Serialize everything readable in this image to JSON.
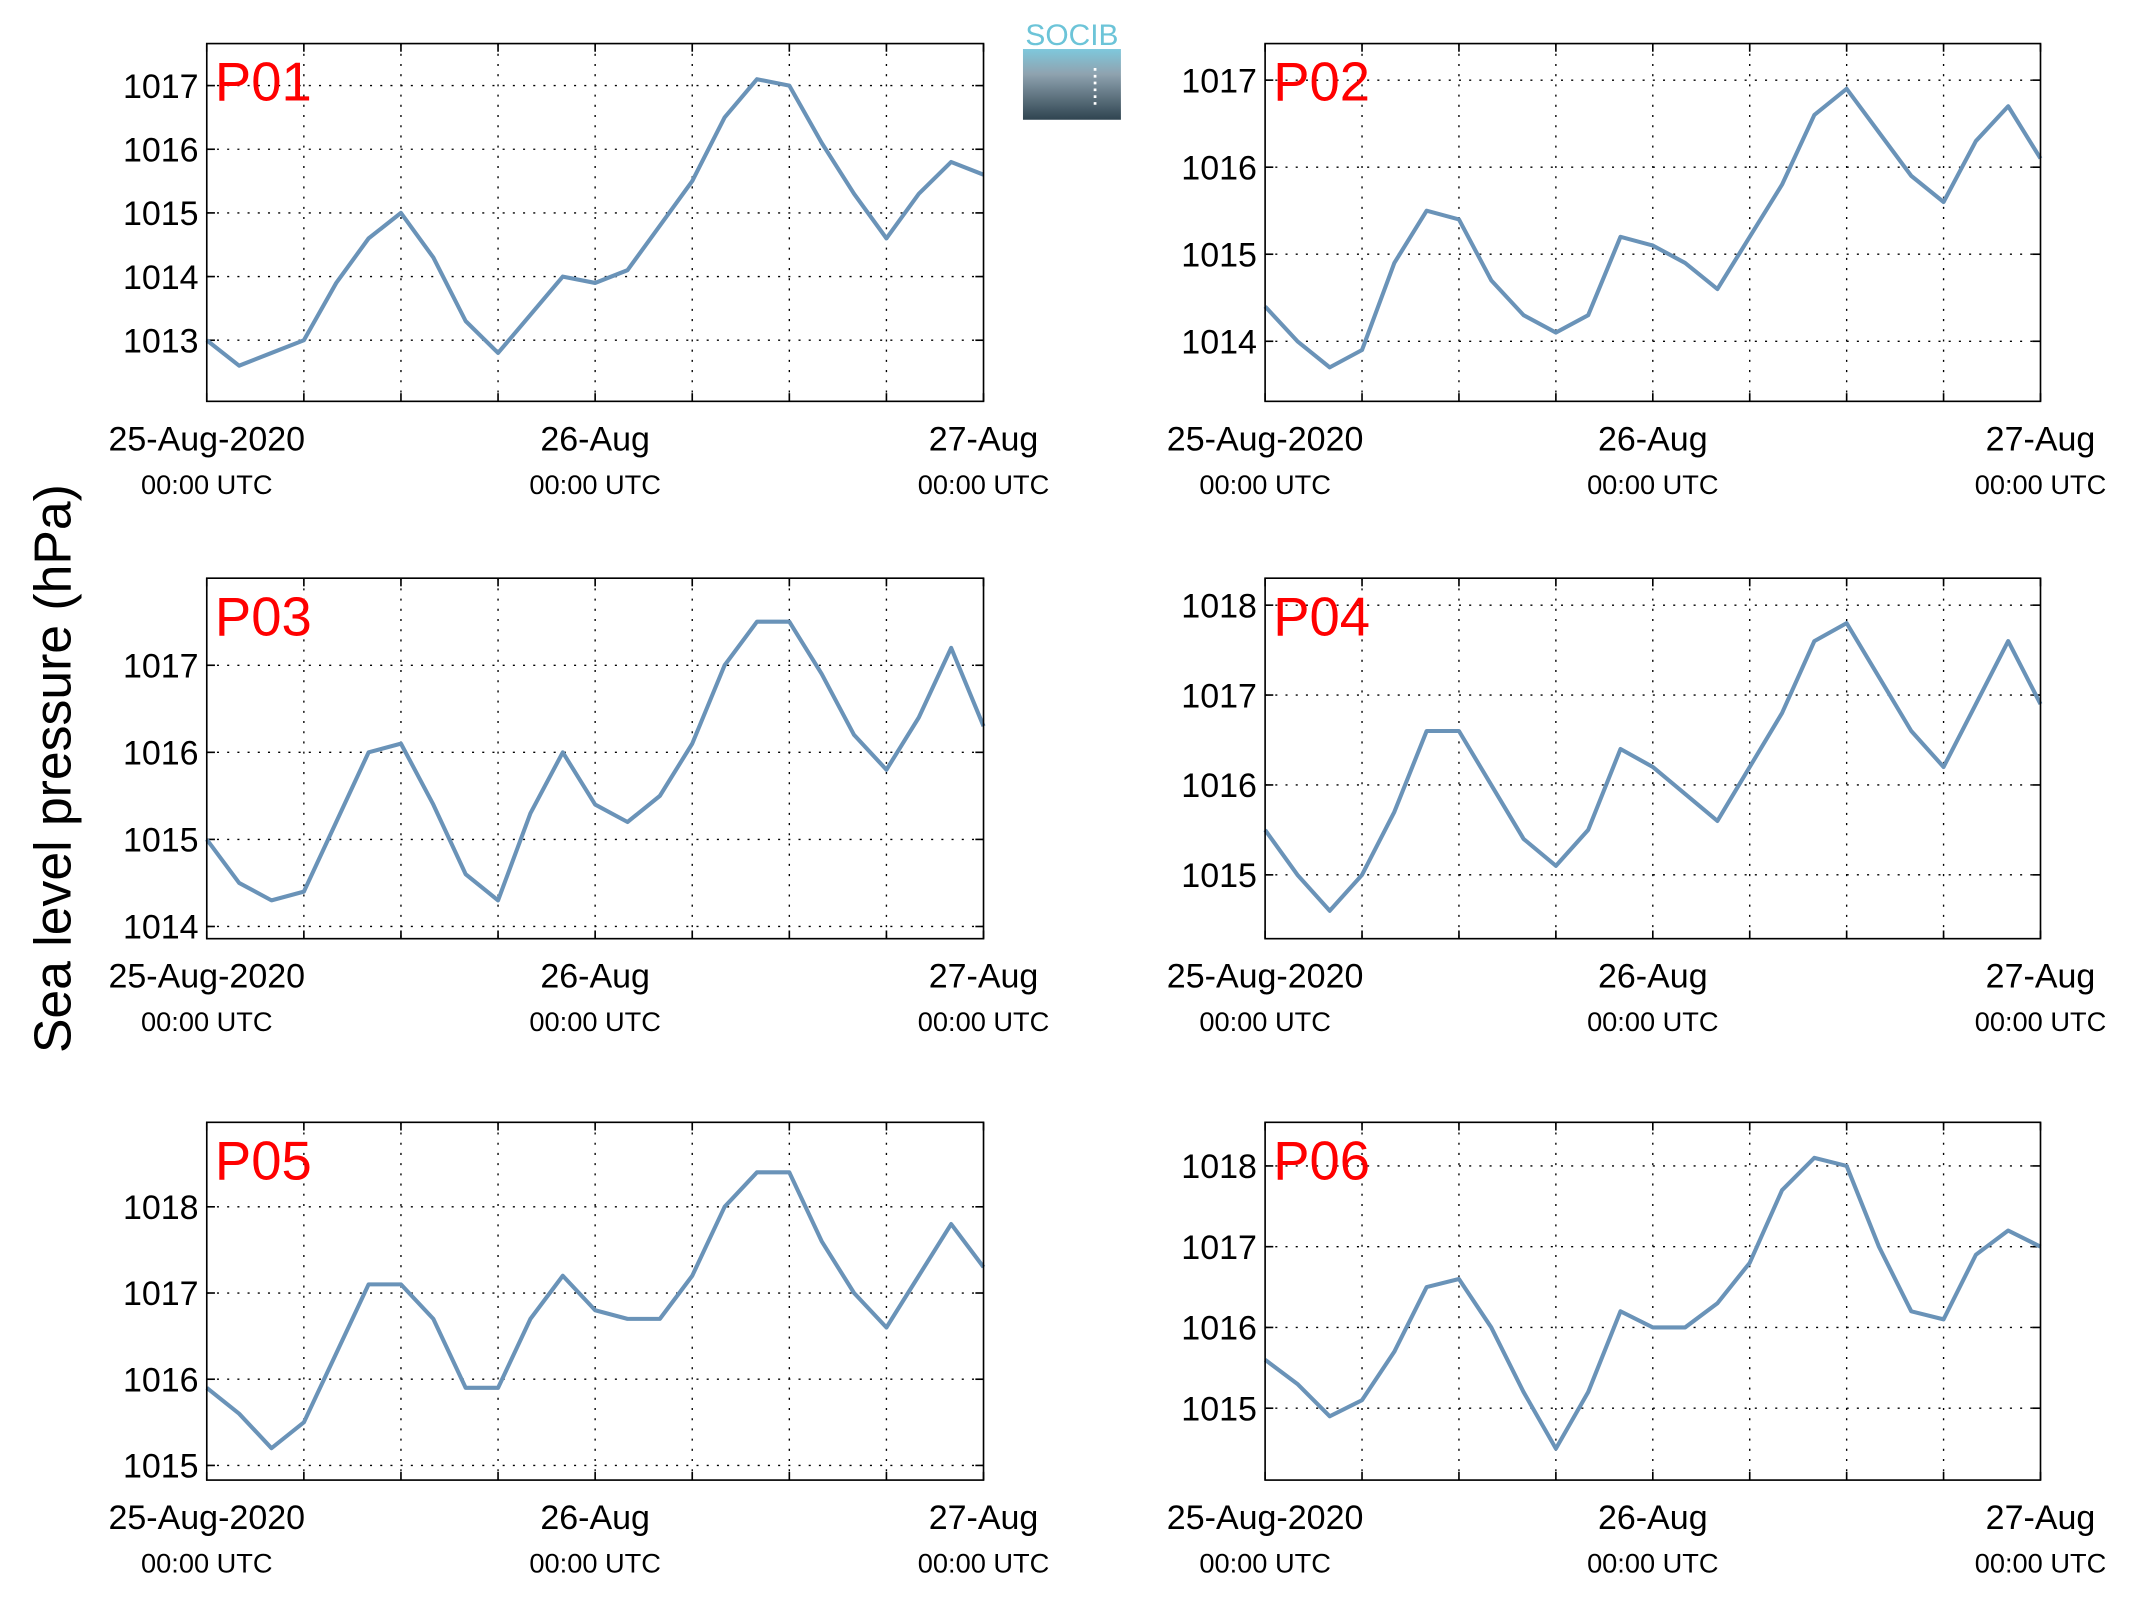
{
  "figure": {
    "ylabel": "Sea level pressure (hPa)",
    "logo": "SOCIB"
  },
  "chart_data": [
    {
      "type": "line",
      "title": "P01",
      "color": "#6a93b8",
      "x": [
        0,
        2,
        4,
        6,
        8,
        10,
        12,
        14,
        16,
        18,
        20,
        22,
        24,
        26,
        28,
        30,
        32,
        34,
        36,
        38,
        40,
        42,
        44,
        46,
        48
      ],
      "values": [
        1013.0,
        1012.6,
        1012.8,
        1013.0,
        1013.9,
        1014.6,
        1015.0,
        1014.3,
        1013.3,
        1012.8,
        1013.4,
        1014.0,
        1013.9,
        1014.1,
        1014.8,
        1015.5,
        1016.5,
        1017.1,
        1017.0,
        1016.1,
        1015.3,
        1014.6,
        1015.3,
        1015.8,
        1015.6
      ],
      "xlim": [
        0,
        48
      ],
      "xticks": [
        {
          "value": 0,
          "label": "25-Aug-2020",
          "sublabel": "00:00 UTC"
        },
        {
          "value": 6,
          "label": null
        },
        {
          "value": 12,
          "label": null
        },
        {
          "value": 18,
          "label": null
        },
        {
          "value": 24,
          "label": "26-Aug",
          "sublabel": "00:00 UTC"
        },
        {
          "value": 30,
          "label": null
        },
        {
          "value": 36,
          "label": null
        },
        {
          "value": 42,
          "label": null
        },
        {
          "value": 48,
          "label": "27-Aug",
          "sublabel": "00:00 UTC"
        }
      ],
      "ylim": [
        1012.04,
        1017.66
      ],
      "yticks": [
        1013,
        1014,
        1015,
        1016,
        1017
      ],
      "grid": true
    },
    {
      "type": "line",
      "title": "P02",
      "color": "#6a93b8",
      "x": [
        0,
        2,
        4,
        6,
        8,
        10,
        12,
        14,
        16,
        18,
        20,
        22,
        24,
        26,
        28,
        30,
        32,
        34,
        36,
        38,
        40,
        42,
        44,
        46,
        48
      ],
      "values": [
        1014.4,
        1014.0,
        1013.7,
        1013.9,
        1014.9,
        1015.5,
        1015.4,
        1014.7,
        1014.3,
        1014.1,
        1014.3,
        1015.2,
        1015.1,
        1014.9,
        1014.6,
        1015.2,
        1015.8,
        1016.6,
        1016.9,
        1016.4,
        1015.9,
        1015.6,
        1016.3,
        1016.7,
        1016.1
      ],
      "xlim": [
        0,
        48
      ],
      "xticks": [
        {
          "value": 0,
          "label": "25-Aug-2020",
          "sublabel": "00:00 UTC"
        },
        {
          "value": 6,
          "label": null
        },
        {
          "value": 12,
          "label": null
        },
        {
          "value": 18,
          "label": null
        },
        {
          "value": 24,
          "label": "26-Aug",
          "sublabel": "00:00 UTC"
        },
        {
          "value": 30,
          "label": null
        },
        {
          "value": 36,
          "label": null
        },
        {
          "value": 42,
          "label": null
        },
        {
          "value": 48,
          "label": "27-Aug",
          "sublabel": "00:00 UTC"
        }
      ],
      "ylim": [
        1013.31,
        1017.42
      ],
      "yticks": [
        1014,
        1015,
        1016,
        1017
      ],
      "grid": true
    },
    {
      "type": "line",
      "title": "P03",
      "color": "#6a93b8",
      "x": [
        0,
        2,
        4,
        6,
        8,
        10,
        12,
        14,
        16,
        18,
        20,
        22,
        24,
        26,
        28,
        30,
        32,
        34,
        36,
        38,
        40,
        42,
        44,
        46,
        48
      ],
      "values": [
        1015.0,
        1014.5,
        1014.3,
        1014.4,
        1015.2,
        1016.0,
        1016.1,
        1015.4,
        1014.6,
        1014.3,
        1015.3,
        1016.0,
        1015.4,
        1015.2,
        1015.5,
        1016.1,
        1017.0,
        1017.5,
        1017.5,
        1016.9,
        1016.2,
        1015.8,
        1016.4,
        1017.2,
        1016.3
      ],
      "xlim": [
        0,
        48
      ],
      "xticks": [
        {
          "value": 0,
          "label": "25-Aug-2020",
          "sublabel": "00:00 UTC"
        },
        {
          "value": 6,
          "label": null
        },
        {
          "value": 12,
          "label": null
        },
        {
          "value": 18,
          "label": null
        },
        {
          "value": 24,
          "label": "26-Aug",
          "sublabel": "00:00 UTC"
        },
        {
          "value": 30,
          "label": null
        },
        {
          "value": 36,
          "label": null
        },
        {
          "value": 42,
          "label": null
        },
        {
          "value": 48,
          "label": "27-Aug",
          "sublabel": "00:00 UTC"
        }
      ],
      "ylim": [
        1013.86,
        1018.0
      ],
      "yticks": [
        1014,
        1015,
        1016,
        1017
      ],
      "grid": true
    },
    {
      "type": "line",
      "title": "P04",
      "color": "#6a93b8",
      "x": [
        0,
        2,
        4,
        6,
        8,
        10,
        12,
        14,
        16,
        18,
        20,
        22,
        24,
        26,
        28,
        30,
        32,
        34,
        36,
        38,
        40,
        42,
        44,
        46,
        48
      ],
      "values": [
        1015.5,
        1015.0,
        1014.6,
        1015.0,
        1015.7,
        1016.6,
        1016.6,
        1016.0,
        1015.4,
        1015.1,
        1015.5,
        1016.4,
        1016.2,
        1015.9,
        1015.6,
        1016.2,
        1016.8,
        1017.6,
        1017.8,
        1017.2,
        1016.6,
        1016.2,
        1016.9,
        1017.6,
        1016.9
      ],
      "xlim": [
        0,
        48
      ],
      "xticks": [
        {
          "value": 0,
          "label": "25-Aug-2020",
          "sublabel": "00:00 UTC"
        },
        {
          "value": 6,
          "label": null
        },
        {
          "value": 12,
          "label": null
        },
        {
          "value": 18,
          "label": null
        },
        {
          "value": 24,
          "label": "26-Aug",
          "sublabel": "00:00 UTC"
        },
        {
          "value": 30,
          "label": null
        },
        {
          "value": 36,
          "label": null
        },
        {
          "value": 42,
          "label": null
        },
        {
          "value": 48,
          "label": "27-Aug",
          "sublabel": "00:00 UTC"
        }
      ],
      "ylim": [
        1014.29,
        1018.3
      ],
      "yticks": [
        1015,
        1016,
        1017,
        1018
      ],
      "grid": true
    },
    {
      "type": "line",
      "title": "P05",
      "color": "#6a93b8",
      "x": [
        0,
        2,
        4,
        6,
        8,
        10,
        12,
        14,
        16,
        18,
        20,
        22,
        24,
        26,
        28,
        30,
        32,
        34,
        36,
        38,
        40,
        42,
        44,
        46,
        48
      ],
      "values": [
        1015.9,
        1015.6,
        1015.2,
        1015.5,
        1016.3,
        1017.1,
        1017.1,
        1016.7,
        1015.9,
        1015.9,
        1016.7,
        1017.2,
        1016.8,
        1016.7,
        1016.7,
        1017.2,
        1018.0,
        1018.4,
        1018.4,
        1017.6,
        1017.0,
        1016.6,
        1017.2,
        1017.8,
        1017.3
      ],
      "xlim": [
        0,
        48
      ],
      "xticks": [
        {
          "value": 0,
          "label": "25-Aug-2020",
          "sublabel": "00:00 UTC"
        },
        {
          "value": 6,
          "label": null
        },
        {
          "value": 12,
          "label": null
        },
        {
          "value": 18,
          "label": null
        },
        {
          "value": 24,
          "label": "26-Aug",
          "sublabel": "00:00 UTC"
        },
        {
          "value": 30,
          "label": null
        },
        {
          "value": 36,
          "label": null
        },
        {
          "value": 42,
          "label": null
        },
        {
          "value": 48,
          "label": "27-Aug",
          "sublabel": "00:00 UTC"
        }
      ],
      "ylim": [
        1014.83,
        1018.98
      ],
      "yticks": [
        1015,
        1016,
        1017,
        1018
      ],
      "grid": true
    },
    {
      "type": "line",
      "title": "P06",
      "color": "#6a93b8",
      "x": [
        0,
        2,
        4,
        6,
        8,
        10,
        12,
        14,
        16,
        18,
        20,
        22,
        24,
        26,
        28,
        30,
        32,
        34,
        36,
        38,
        40,
        42,
        44,
        46,
        48
      ],
      "values": [
        1015.6,
        1015.3,
        1014.9,
        1015.1,
        1015.7,
        1016.5,
        1016.6,
        1016.0,
        1015.2,
        1014.5,
        1015.2,
        1016.2,
        1016.0,
        1016.0,
        1016.3,
        1016.8,
        1017.7,
        1018.1,
        1018.0,
        1017.0,
        1016.2,
        1016.1,
        1016.9,
        1017.2,
        1017.0
      ],
      "xlim": [
        0,
        48
      ],
      "xticks": [
        {
          "value": 0,
          "label": "25-Aug-2020",
          "sublabel": "00:00 UTC"
        },
        {
          "value": 6,
          "label": null
        },
        {
          "value": 12,
          "label": null
        },
        {
          "value": 18,
          "label": null
        },
        {
          "value": 24,
          "label": "26-Aug",
          "sublabel": "00:00 UTC"
        },
        {
          "value": 30,
          "label": null
        },
        {
          "value": 36,
          "label": null
        },
        {
          "value": 42,
          "label": null
        },
        {
          "value": 48,
          "label": "27-Aug",
          "sublabel": "00:00 UTC"
        }
      ],
      "ylim": [
        1014.11,
        1018.54
      ],
      "yticks": [
        1015,
        1016,
        1017,
        1018
      ],
      "grid": true
    }
  ]
}
